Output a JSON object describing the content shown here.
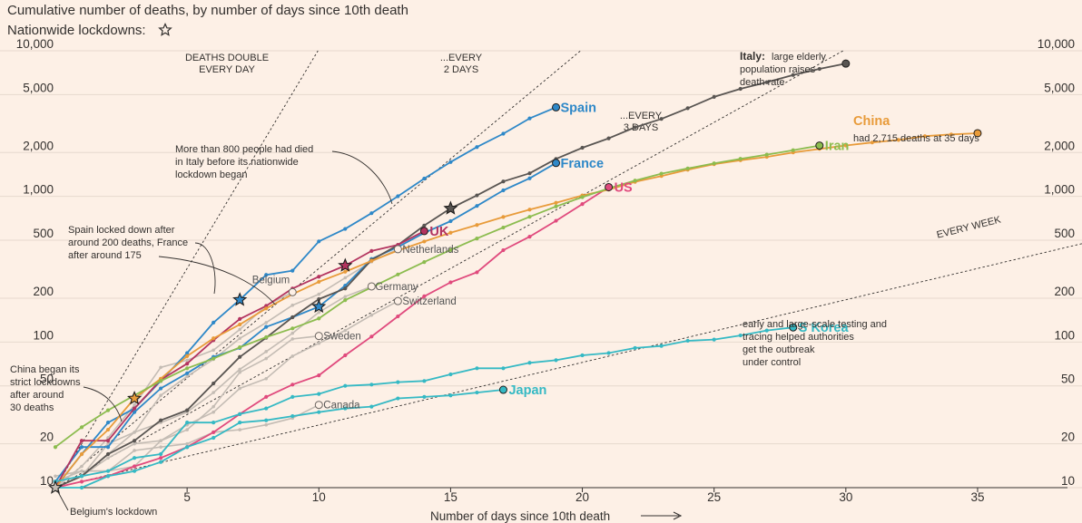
{
  "chart_data": {
    "type": "line",
    "title": "Cumulative number of deaths, by number of days since 10th death",
    "subtitle": "Nationwide lockdowns:",
    "xlabel": "Number of days since 10th death",
    "x_scale": "linear",
    "y_scale": "log",
    "xlim": [
      0,
      36
    ],
    "ylim": [
      10,
      10000
    ],
    "x_ticks": [
      5,
      10,
      15,
      20,
      25,
      30,
      35
    ],
    "y_ticks": [
      10,
      20,
      50,
      100,
      200,
      500,
      1000,
      2000,
      5000,
      10000
    ],
    "y_tick_labels": [
      "10",
      "20",
      "50",
      "100",
      "200",
      "500",
      "1,000",
      "2,000",
      "5,000",
      "10,000"
    ],
    "grid": "horizontal",
    "doubling_lines": [
      {
        "label_line1": "DEATHS DOUBLE",
        "label_line2": "EVERY DAY",
        "doubling_days": 1
      },
      {
        "label_line1": "...EVERY",
        "label_line2": "2 DAYS",
        "doubling_days": 2
      },
      {
        "label_line1": "...EVERY",
        "label_line2": "3 DAYS",
        "doubling_days": 3
      },
      {
        "label_line1": "EVERY WEEK",
        "label_line2": "",
        "doubling_days": 7
      }
    ],
    "series": [
      {
        "name": "Belgium",
        "label": "Belgium",
        "color": "#c4bcb4",
        "highlight": false,
        "lockdown_day": 0,
        "x": [
          0,
          1,
          2,
          3,
          4,
          5,
          6,
          7,
          8,
          9
        ],
        "y": [
          10,
          14,
          22,
          37,
          67,
          75,
          88,
          122,
          178,
          220
        ]
      },
      {
        "name": "Germany",
        "label": "Germany",
        "color": "#c4bcb4",
        "highlight": false,
        "x": [
          0,
          1,
          2,
          3,
          4,
          5,
          6,
          7,
          8,
          9,
          10,
          11,
          12
        ],
        "y": [
          10,
          12,
          17,
          24,
          28,
          33,
          45,
          65,
          86,
          115,
          160,
          205,
          241
        ]
      },
      {
        "name": "Netherlands",
        "label": "Netherlands",
        "color": "#c4bcb4",
        "highlight": false,
        "x": [
          0,
          1,
          2,
          3,
          4,
          5,
          6,
          7,
          8,
          9,
          10,
          11,
          12,
          13
        ],
        "y": [
          10,
          12,
          20,
          24,
          43,
          58,
          76,
          106,
          136,
          179,
          213,
          276,
          356,
          434
        ]
      },
      {
        "name": "Switzerland",
        "label": "Switzerland",
        "color": "#c4bcb4",
        "highlight": false,
        "x": [
          0,
          1,
          2,
          3,
          4,
          5,
          6,
          7,
          8,
          9,
          10,
          11,
          12,
          13
        ],
        "y": [
          11,
          13,
          13,
          14,
          21,
          27,
          33,
          48,
          56,
          80,
          98,
          120,
          153,
          191
        ]
      },
      {
        "name": "Sweden",
        "label": "Sweden",
        "color": "#c4bcb4",
        "highlight": false,
        "x": [
          0,
          1,
          2,
          3,
          4,
          5,
          6,
          7,
          8,
          9,
          10
        ],
        "y": [
          10,
          12,
          16,
          20,
          21,
          25,
          36,
          62,
          77,
          105,
          110
        ]
      },
      {
        "name": "Canada",
        "label": "Canada",
        "color": "#c4bcb4",
        "highlight": false,
        "x": [
          0,
          1,
          2,
          3,
          4,
          5,
          6,
          7,
          8,
          9,
          10
        ],
        "y": [
          12,
          13,
          13,
          18,
          19,
          20,
          24,
          25,
          27,
          30,
          37
        ]
      },
      {
        "name": "Spain",
        "label": "Spain",
        "color": "#2e88c8",
        "highlight": true,
        "lockdown_day": 7,
        "x": [
          0,
          1,
          2,
          3,
          4,
          5,
          6,
          7,
          8,
          9,
          10,
          11,
          12,
          13,
          14,
          15,
          16,
          17,
          18,
          19
        ],
        "y": [
          10,
          17,
          28,
          35,
          54,
          84,
          136,
          195,
          289,
          309,
          491,
          598,
          767,
          1002,
          1326,
          1720,
          2182,
          2696,
          3434,
          4089
        ]
      },
      {
        "name": "France",
        "label": "France",
        "color": "#2e88c8",
        "highlight": true,
        "lockdown_day": 10,
        "x": [
          0,
          1,
          2,
          3,
          4,
          5,
          6,
          7,
          8,
          9,
          10,
          11,
          12,
          13,
          14,
          15,
          16,
          17,
          18,
          19
        ],
        "y": [
          11,
          19,
          19,
          33,
          48,
          61,
          79,
          91,
          127,
          148,
          175,
          244,
          372,
          450,
          562,
          676,
          860,
          1100,
          1331,
          1696
        ]
      },
      {
        "name": "Italy",
        "label": "Italy",
        "color": "#595552",
        "highlight": true,
        "lockdown_day": 15,
        "x": [
          0,
          1,
          2,
          3,
          4,
          5,
          6,
          7,
          8,
          9,
          10,
          11,
          12,
          13,
          14,
          15,
          16,
          17,
          18,
          19,
          20,
          21,
          22,
          23,
          24,
          25,
          26,
          27,
          28,
          29,
          30
        ],
        "y": [
          10,
          12,
          17,
          21,
          29,
          34,
          52,
          79,
          107,
          148,
          197,
          233,
          366,
          463,
          631,
          827,
          1016,
          1266,
          1441,
          1809,
          2158,
          2503,
          2978,
          3405,
          4032,
          4825,
          5476,
          6077,
          6820,
          7503,
          8165
        ]
      },
      {
        "name": "UK",
        "label": "UK",
        "color": "#b3345f",
        "highlight": true,
        "lockdown_day": 11,
        "x": [
          0,
          1,
          2,
          3,
          4,
          5,
          6,
          7,
          8,
          9,
          10,
          11,
          12,
          13,
          14
        ],
        "y": [
          10,
          21,
          21,
          35,
          55,
          71,
          103,
          144,
          177,
          233,
          281,
          335,
          422,
          465,
          578
        ]
      },
      {
        "name": "US",
        "label": "US",
        "color": "#e04a7d",
        "highlight": true,
        "x": [
          0,
          1,
          2,
          3,
          4,
          5,
          6,
          7,
          8,
          9,
          10,
          11,
          12,
          13,
          14,
          15,
          16,
          17,
          18,
          19,
          20,
          21
        ],
        "y": [
          10,
          11,
          12,
          14,
          16,
          19,
          24,
          32,
          42,
          51,
          59,
          81,
          109,
          150,
          206,
          257,
          301,
          427,
          529,
          680,
          886,
          1157
        ]
      },
      {
        "name": "China",
        "label": "China",
        "color": "#e89b3a",
        "highlight": true,
        "lockdown_day": 3,
        "annotation": "had 2,715 deaths at 35 days",
        "x": [
          0,
          1,
          2,
          3,
          4,
          5,
          6,
          7,
          8,
          9,
          10,
          11,
          12,
          13,
          14,
          15,
          16,
          17,
          18,
          19,
          20,
          21,
          22,
          23,
          24,
          25,
          26,
          27,
          28,
          29,
          30,
          31,
          32,
          33,
          34,
          35
        ],
        "y": [
          10,
          17,
          25,
          41,
          56,
          80,
          106,
          132,
          170,
          213,
          259,
          304,
          361,
          425,
          490,
          563,
          636,
          722,
          811,
          904,
          1016,
          1113,
          1259,
          1380,
          1523,
          1665,
          1770,
          1868,
          2004,
          2118,
          2236,
          2345,
          2442,
          2592,
          2663,
          2715
        ]
      },
      {
        "name": "Iran",
        "label": "Iran",
        "color": "#8cbc4f",
        "highlight": true,
        "x": [
          0,
          1,
          2,
          3,
          4,
          5,
          6,
          7,
          8,
          9,
          10,
          11,
          12,
          13,
          14,
          15,
          16,
          17,
          18,
          19,
          20,
          21,
          22,
          23,
          24,
          25,
          26,
          27,
          28,
          29
        ],
        "y": [
          19,
          26,
          34,
          43,
          54,
          66,
          77,
          92,
          108,
          124,
          145,
          194,
          237,
          291,
          354,
          429,
          514,
          611,
          724,
          853,
          988,
          1135,
          1284,
          1433,
          1556,
          1685,
          1812,
          1934,
          2077,
          2234
        ]
      },
      {
        "name": "South Korea",
        "label": "S Korea",
        "color": "#35b9c4",
        "highlight": true,
        "annotation_line1": "early and large-scale testing and",
        "annotation_line2": "tracing helped authorities",
        "annotation_line3": "get the outbreak",
        "annotation_line4": "under control",
        "x": [
          0,
          1,
          2,
          3,
          4,
          5,
          6,
          7,
          8,
          9,
          10,
          11,
          12,
          13,
          14,
          15,
          16,
          17,
          18,
          19,
          20,
          21,
          22,
          23,
          24,
          25,
          26,
          27,
          28
        ],
        "y": [
          11,
          12,
          13,
          16,
          17,
          28,
          28,
          32,
          35,
          42,
          44,
          50,
          51,
          53,
          54,
          60,
          66,
          66,
          72,
          75,
          81,
          84,
          91,
          94,
          102,
          104,
          111,
          120,
          126
        ]
      },
      {
        "name": "Japan",
        "label": "Japan",
        "color": "#35b9c4",
        "highlight": true,
        "x": [
          0,
          1,
          2,
          3,
          4,
          5,
          6,
          7,
          8,
          9,
          10,
          11,
          12,
          13,
          14,
          15,
          16,
          17
        ],
        "y": [
          10,
          10,
          12,
          13,
          15,
          19,
          22,
          28,
          29,
          31,
          33,
          35,
          36,
          41,
          42,
          43,
          45,
          47
        ]
      }
    ],
    "annotations": {
      "italy_bold": "Italy:",
      "italy_line1": "large elderly",
      "italy_line2": "population raises",
      "italy_line3": "death rate",
      "italy_lockdown_line1": "More than 800 people had died",
      "italy_lockdown_line2": "in Italy before its nationwide",
      "italy_lockdown_line3": "lockdown began",
      "spain_france_line1": "Spain locked down after",
      "spain_france_line2": "around 200 deaths, France",
      "spain_france_line3": "after around 175",
      "china_line1": "China began its",
      "china_line2": "strict lockdowns",
      "china_line3": "after around",
      "china_line4": "30 deaths",
      "belgium": "Belgium's lockdown"
    }
  }
}
